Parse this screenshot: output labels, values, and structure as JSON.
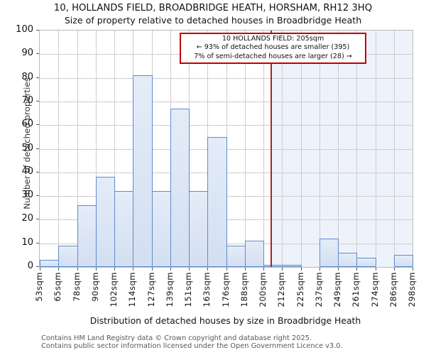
{
  "title": "10, HOLLANDS FIELD, BROADBRIDGE HEATH, HORSHAM, RH12 3HQ",
  "subtitle": "Size of property relative to detached houses in Broadbridge Heath",
  "annotation": {
    "line1": "10 HOLLANDS FIELD: 205sqm",
    "line2": "← 93% of detached houses are smaller (395)",
    "line3": "7% of semi-detached houses are larger (28) →"
  },
  "chart_data": {
    "type": "bar",
    "title": "10, HOLLANDS FIELD, BROADBRIDGE HEATH, HORSHAM, RH12 3HQ",
    "subtitle": "Size of property relative to detached houses in Broadbridge Heath",
    "xlabel": "Distribution of detached houses by size in Broadbridge Heath",
    "ylabel": "Number of detached properties",
    "bin_edges_sqm": [
      53,
      65,
      78,
      90,
      102,
      114,
      127,
      139,
      151,
      163,
      176,
      188,
      200,
      212,
      225,
      237,
      249,
      261,
      274,
      286,
      298
    ],
    "x_tick_labels": [
      "53sqm",
      "65sqm",
      "78sqm",
      "90sqm",
      "102sqm",
      "114sqm",
      "127sqm",
      "139sqm",
      "151sqm",
      "163sqm",
      "176sqm",
      "188sqm",
      "200sqm",
      "212sqm",
      "225sqm",
      "237sqm",
      "249sqm",
      "261sqm",
      "274sqm",
      "286sqm",
      "298sqm"
    ],
    "values": [
      3,
      9,
      26,
      38,
      32,
      81,
      32,
      67,
      32,
      55,
      9,
      11,
      1,
      1,
      0,
      12,
      6,
      4,
      0,
      5
    ],
    "ylim": [
      0,
      100
    ],
    "y_ticks": [
      0,
      10,
      20,
      30,
      40,
      50,
      60,
      70,
      80,
      90,
      100
    ],
    "grid": true,
    "legend": "none",
    "marker_value_sqm": 205,
    "colors": {
      "bar_fill": "#d8e2f3",
      "bar_border": "#5f8ccd",
      "marker_line": "#b02020",
      "annotation_border": "#c00000",
      "region_right_of_marker_bg": "#eef2fb",
      "gridline": "#cdcdcd"
    }
  },
  "footer": {
    "line1": "Contains HM Land Registry data © Crown copyright and database right 2025.",
    "line2": "Contains public sector information licensed under the Open Government Licence v3.0."
  }
}
